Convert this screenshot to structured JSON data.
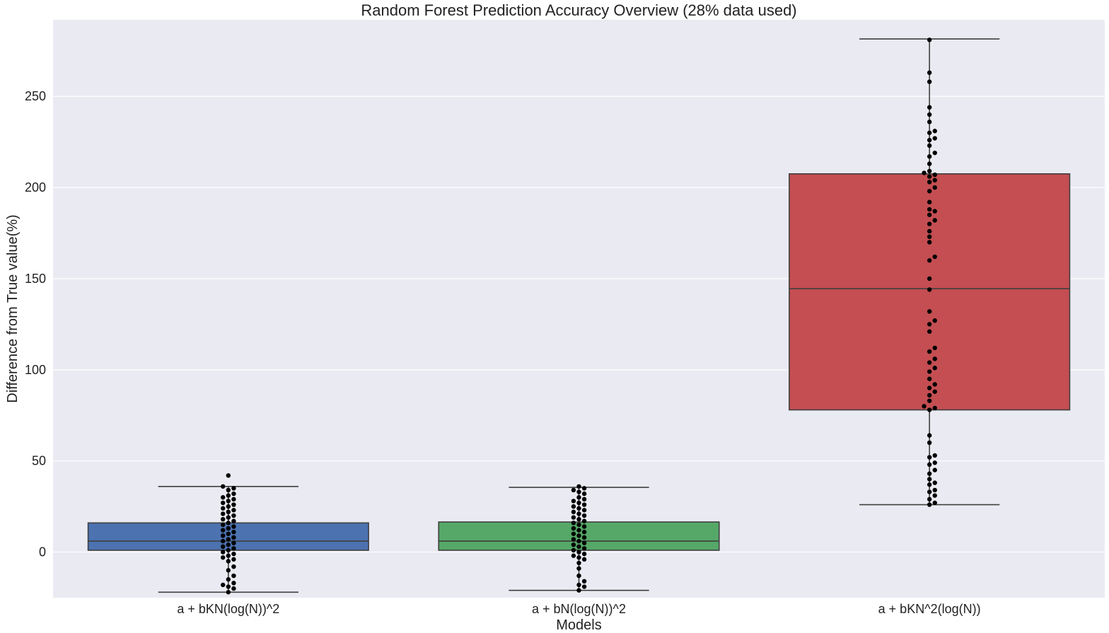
{
  "chart_data": {
    "type": "box",
    "title": "Random Forest Prediction Accuracy Overview (28% data used)",
    "xlabel": "Models",
    "ylabel": "Difference from True value(%)",
    "ylim": [
      -25,
      292
    ],
    "yticks": [
      0,
      50,
      100,
      150,
      200,
      250
    ],
    "grid": true,
    "background_color": "#eaeaf2",
    "point_color": "#000000",
    "categories": [
      "a + bKN(log(N))^2",
      "a + bN(log(N))^2",
      "a + bKN^2(log(N))"
    ],
    "boxes": [
      {
        "category": "a + bKN(log(N))^2",
        "color": "#4c72b0",
        "whisker_low": -22,
        "q1": 1,
        "median": 6,
        "q3": 16,
        "whisker_high": 36,
        "max_point": 42
      },
      {
        "category": "a + bN(log(N))^2",
        "color": "#55a868",
        "whisker_low": -21,
        "q1": 1,
        "median": 6,
        "q3": 16.5,
        "whisker_high": 35.5,
        "max_point": 36
      },
      {
        "category": "a + bKN^2(log(N))",
        "color": "#c44e52",
        "whisker_low": 26,
        "q1": 78,
        "median": 144.5,
        "q3": 207.5,
        "whisker_high": 281.5,
        "max_point": 281.5
      }
    ],
    "points": [
      {
        "category": "a + bKN(log(N))^2",
        "y": [
          42,
          36,
          35,
          34,
          32,
          31,
          30,
          29,
          28,
          27,
          26,
          25,
          24,
          23,
          22,
          21,
          20,
          19,
          18,
          17,
          16,
          15,
          14,
          13,
          12,
          11,
          10,
          9,
          8,
          7,
          6,
          5,
          4,
          3,
          2,
          1,
          0,
          -1,
          -2,
          -3,
          -4,
          -5,
          -8,
          -10,
          -13,
          -15,
          -17,
          -18,
          -19,
          -20,
          -22
        ]
      },
      {
        "category": "a + bN(log(N))^2",
        "y": [
          36,
          35,
          34,
          33,
          32,
          30,
          29,
          28,
          27,
          26,
          25,
          24,
          23,
          22,
          21,
          20,
          19,
          18,
          17,
          16,
          15,
          14,
          13,
          12,
          11,
          10,
          9,
          8,
          7,
          6,
          5,
          4,
          3,
          2,
          1,
          0,
          -1,
          -2,
          -3,
          -4,
          -6,
          -9,
          -13,
          -16,
          -18,
          -19,
          -21
        ]
      },
      {
        "category": "a + bKN^2(log(N))",
        "y": [
          281,
          263,
          258,
          244,
          240,
          236,
          231,
          230,
          227,
          226,
          223,
          219,
          217,
          213,
          209,
          208,
          207,
          206,
          204,
          203,
          200,
          198,
          192,
          188,
          187,
          185,
          182,
          180,
          176,
          173,
          170,
          162,
          160,
          150,
          144,
          132,
          127,
          125,
          121,
          112,
          110,
          106,
          104,
          101,
          99,
          95,
          92,
          90,
          88,
          86,
          83,
          80,
          79,
          78,
          64,
          60,
          53,
          52,
          49,
          48,
          45,
          43,
          40,
          38,
          37,
          34,
          33,
          31,
          29,
          27,
          26
        ]
      }
    ]
  }
}
